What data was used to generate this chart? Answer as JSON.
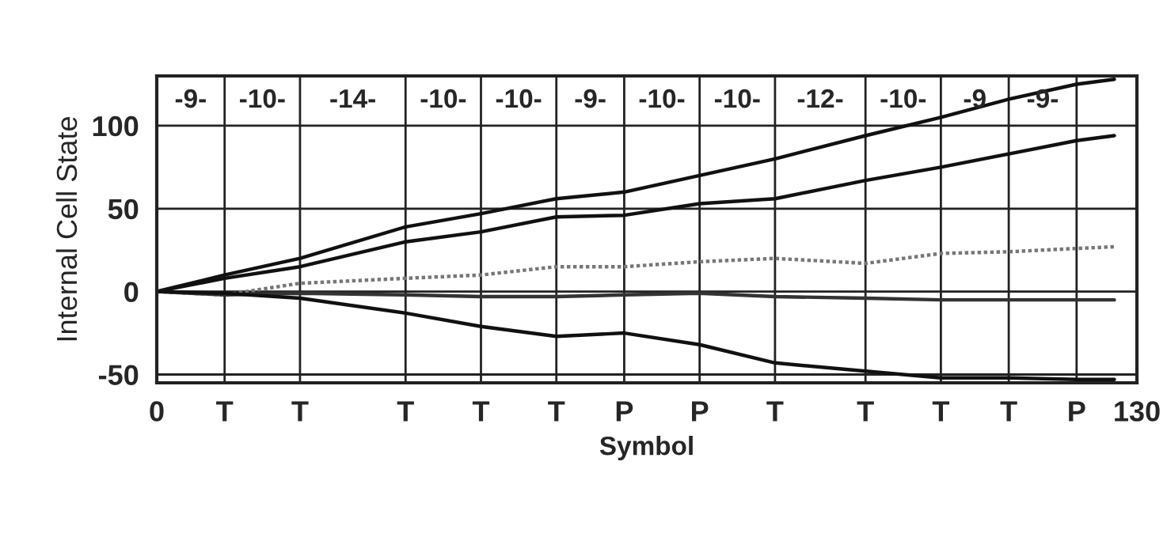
{
  "chart_data": {
    "type": "line",
    "xlabel": "Symbol",
    "ylabel": "Internal Cell State",
    "x": [
      0,
      9,
      19,
      33,
      43,
      53,
      62,
      72,
      82,
      94,
      104,
      113,
      122,
      127
    ],
    "series": [
      {
        "color": "#111111",
        "line_style": "solid",
        "values": [
          0,
          10,
          20,
          39,
          47,
          56,
          60,
          70,
          80,
          94,
          105,
          116,
          125,
          128
        ]
      },
      {
        "color": "#111111",
        "line_style": "solid",
        "values": [
          0,
          8,
          15,
          30,
          36,
          45,
          46,
          53,
          56,
          67,
          75,
          83,
          91,
          94
        ]
      },
      {
        "color": "#777777",
        "line_style": "dotted",
        "values": [
          0,
          -2,
          5,
          8,
          10,
          15,
          15,
          18,
          20,
          17,
          23,
          24,
          26,
          27
        ]
      },
      {
        "color": "#333333",
        "line_style": "solid",
        "values": [
          0,
          -2,
          -1,
          -2,
          -3,
          -3,
          -2,
          -1,
          -3,
          -4,
          -5,
          -5,
          -5,
          -5
        ]
      },
      {
        "color": "#111111",
        "line_style": "solid",
        "values": [
          0,
          -1,
          -4,
          -13,
          -21,
          -27,
          -25,
          -32,
          -43,
          -48,
          -52,
          -52,
          -53,
          -53
        ]
      }
    ],
    "xlim": [
      0,
      130
    ],
    "ylim": [
      -55,
      130
    ],
    "xticks": [
      0,
      {
        "value": 9,
        "label": "T"
      },
      {
        "value": 19,
        "label": "T"
      },
      {
        "value": 33,
        "label": "T"
      },
      {
        "value": 43,
        "label": "T"
      },
      {
        "value": 53,
        "label": "T"
      },
      {
        "value": 62,
        "label": "P"
      },
      {
        "value": 72,
        "label": "P"
      },
      {
        "value": 82,
        "label": "T"
      },
      {
        "value": 94,
        "label": "T"
      },
      {
        "value": 104,
        "label": "T"
      },
      {
        "value": 113,
        "label": "T"
      },
      {
        "value": 122,
        "label": "P"
      },
      130
    ],
    "yticks": [
      -50,
      0,
      50,
      100
    ],
    "annotations": [
      "-9-",
      "-10-",
      "-14-",
      "-10-",
      "-10-",
      "-9-",
      "-10-",
      "-10-",
      "-12-",
      "-10-",
      "-9",
      "-9-"
    ],
    "grid": true,
    "legend": false
  }
}
